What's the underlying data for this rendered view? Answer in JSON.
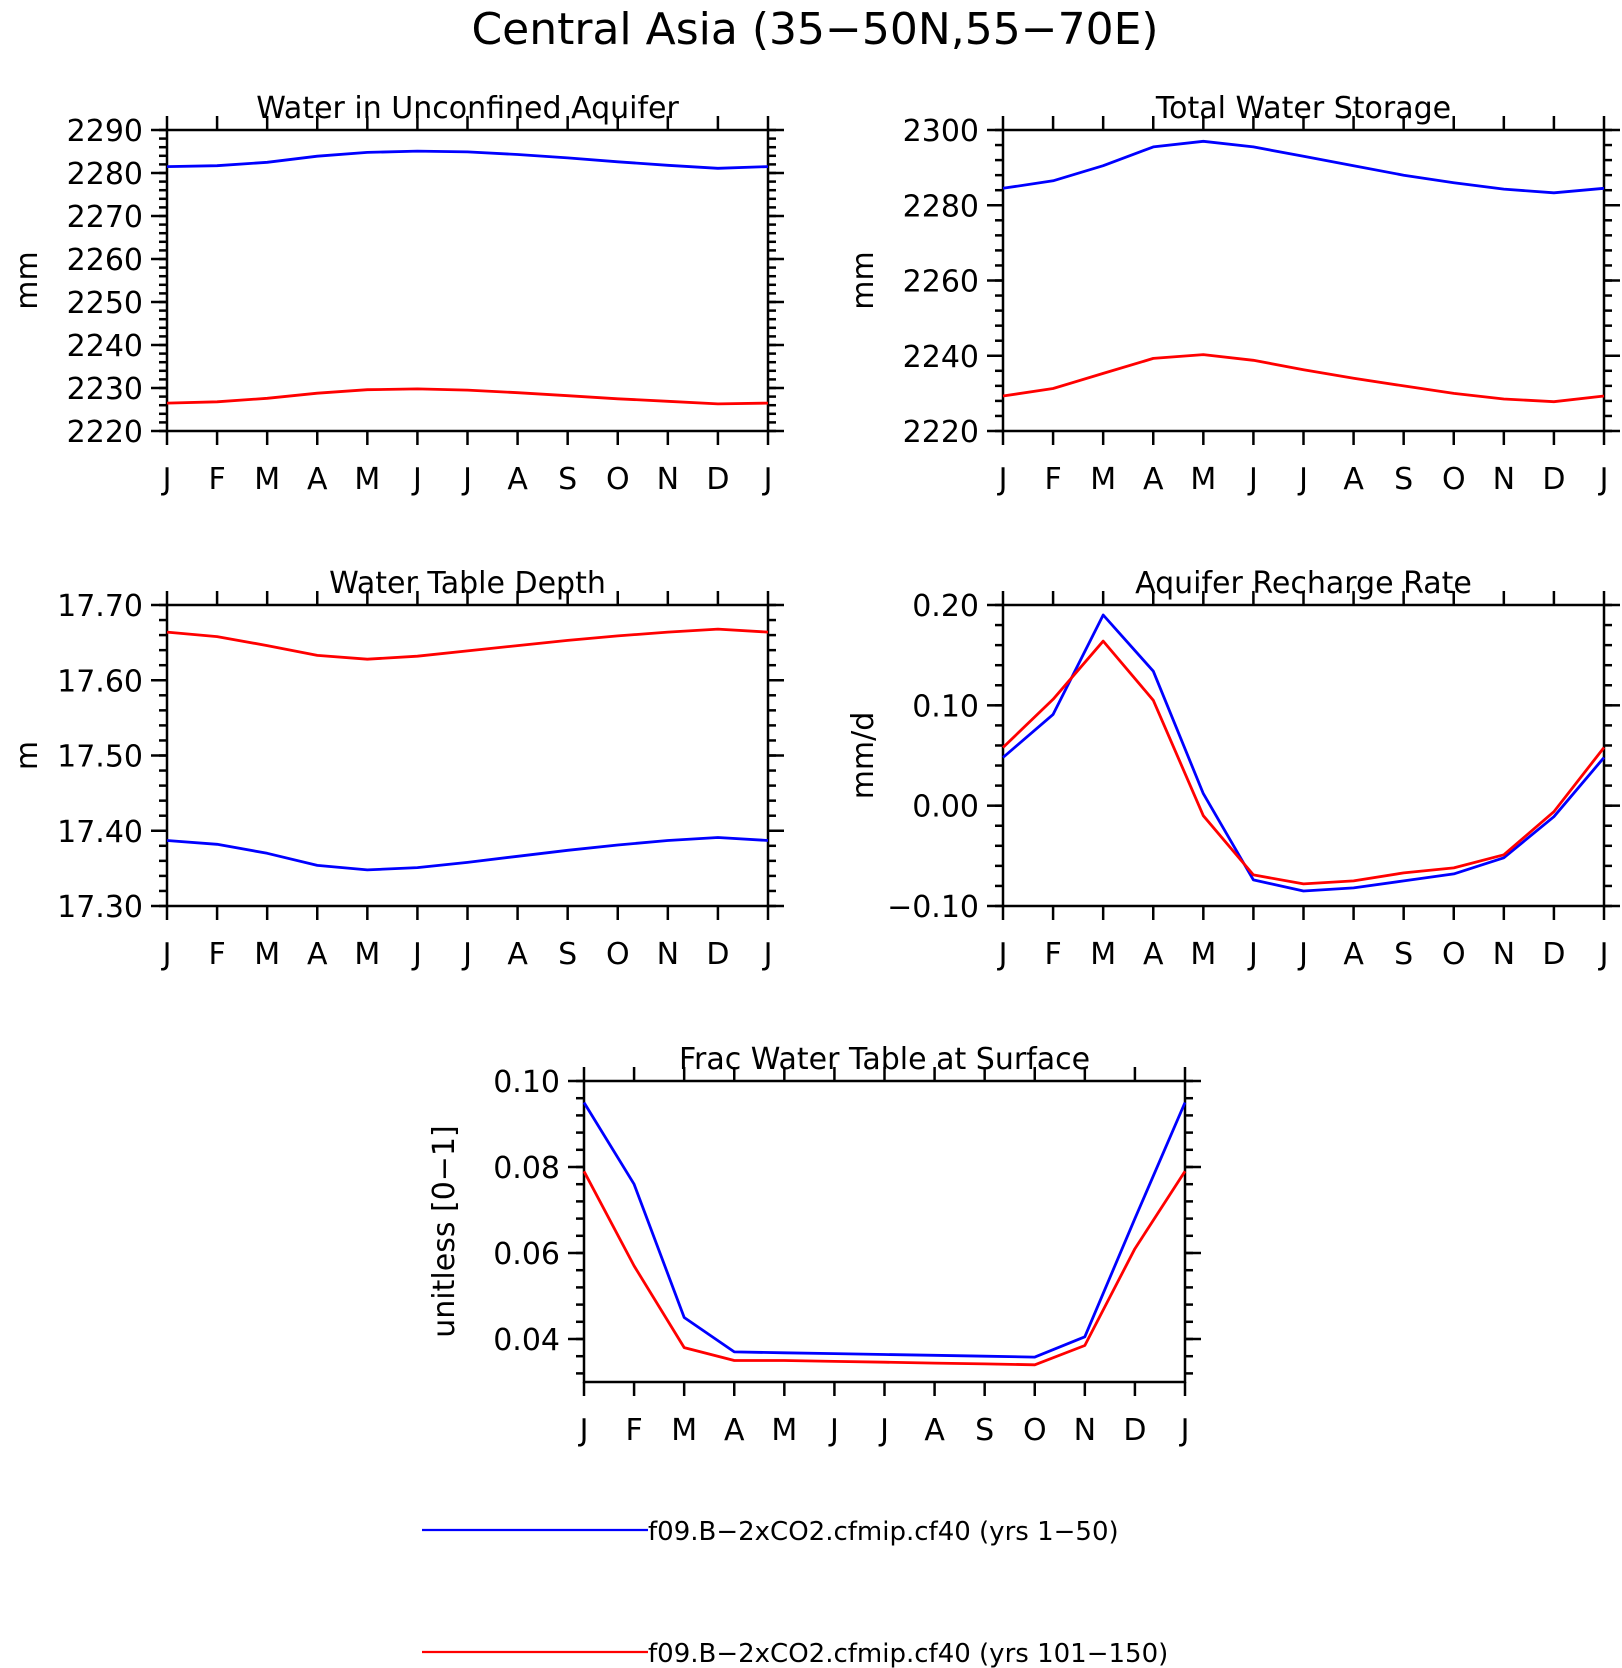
{
  "figure_title": "Central Asia (35−50N,55−70E)",
  "colors": {
    "series_1": "#0000ff",
    "series_2": "#ff0000",
    "axes": "#000000"
  },
  "legend": [
    {
      "label": "f09.B−2xCO2.cfmip.cf40 (yrs 1−50)",
      "color": "#0000ff"
    },
    {
      "label": "f09.B−2xCO2.cfmip.cf40 (yrs 101−150)",
      "color": "#ff0000"
    }
  ],
  "chart_data": [
    {
      "type": "line",
      "title": "Water in Unconfined Aquifer",
      "ylabel": "mm",
      "xlabel": "",
      "x": [
        "J",
        "F",
        "M",
        "A",
        "M",
        "J",
        "J",
        "A",
        "S",
        "O",
        "N",
        "D",
        "J"
      ],
      "ylim": [
        2220,
        2290
      ],
      "yticks": [
        2220,
        2230,
        2240,
        2250,
        2260,
        2270,
        2280,
        2290
      ],
      "ytick_labels": [
        "2220",
        "2230",
        "2240",
        "2250",
        "2260",
        "2270",
        "2280",
        "2290"
      ],
      "series": [
        {
          "values": [
            2281.5,
            2281.7,
            2282.5,
            2283.9,
            2284.8,
            2285.1,
            2284.9,
            2284.3,
            2283.5,
            2282.6,
            2281.8,
            2281.1,
            2281.5
          ],
          "color": "#0000ff"
        },
        {
          "values": [
            2226.5,
            2226.8,
            2227.6,
            2228.8,
            2229.6,
            2229.8,
            2229.5,
            2228.9,
            2228.2,
            2227.5,
            2226.9,
            2226.3,
            2226.5
          ],
          "color": "#ff0000"
        }
      ]
    },
    {
      "type": "line",
      "title": "Total Water Storage",
      "ylabel": "mm",
      "xlabel": "",
      "x": [
        "J",
        "F",
        "M",
        "A",
        "M",
        "J",
        "J",
        "A",
        "S",
        "O",
        "N",
        "D",
        "J"
      ],
      "ylim": [
        2220,
        2300
      ],
      "yticks": [
        2220,
        2240,
        2260,
        2280,
        2300
      ],
      "ytick_labels": [
        "2220",
        "2240",
        "2260",
        "2280",
        "2300"
      ],
      "series": [
        {
          "values": [
            2284.5,
            2286.5,
            2290.5,
            2295.5,
            2297.0,
            2295.5,
            2293.0,
            2290.5,
            2288.0,
            2286.0,
            2284.3,
            2283.3,
            2284.5
          ],
          "color": "#0000ff"
        },
        {
          "values": [
            2229.3,
            2231.3,
            2235.3,
            2239.3,
            2240.3,
            2238.8,
            2236.3,
            2234.0,
            2232.0,
            2230.0,
            2228.5,
            2227.8,
            2229.3
          ],
          "color": "#ff0000"
        }
      ]
    },
    {
      "type": "line",
      "title": "Water Table Depth",
      "ylabel": "m",
      "xlabel": "",
      "x": [
        "J",
        "F",
        "M",
        "A",
        "M",
        "J",
        "J",
        "A",
        "S",
        "O",
        "N",
        "D",
        "J"
      ],
      "ylim": [
        17.3,
        17.7
      ],
      "yticks": [
        17.3,
        17.4,
        17.5,
        17.6,
        17.7
      ],
      "ytick_labels": [
        "17.30",
        "17.40",
        "17.50",
        "17.60",
        "17.70"
      ],
      "series": [
        {
          "values": [
            17.387,
            17.382,
            17.37,
            17.354,
            17.348,
            17.351,
            17.358,
            17.366,
            17.374,
            17.381,
            17.387,
            17.391,
            17.387
          ],
          "color": "#0000ff"
        },
        {
          "values": [
            17.664,
            17.658,
            17.646,
            17.633,
            17.628,
            17.632,
            17.639,
            17.646,
            17.653,
            17.659,
            17.664,
            17.668,
            17.664
          ],
          "color": "#ff0000"
        }
      ]
    },
    {
      "type": "line",
      "title": "Aquifer Recharge Rate",
      "ylabel": "mm/d",
      "xlabel": "",
      "x": [
        "J",
        "F",
        "M",
        "A",
        "M",
        "J",
        "J",
        "A",
        "S",
        "O",
        "N",
        "D",
        "J"
      ],
      "ylim": [
        -0.1,
        0.2
      ],
      "yticks": [
        -0.1,
        0.0,
        0.1,
        0.2
      ],
      "ytick_labels": [
        "−0.10",
        "0.00",
        "0.10",
        "0.20"
      ],
      "series": [
        {
          "values": [
            0.048,
            0.091,
            0.19,
            0.134,
            0.012,
            -0.074,
            -0.085,
            -0.082,
            -0.075,
            -0.068,
            -0.052,
            -0.011,
            0.048
          ],
          "color": "#0000ff"
        },
        {
          "values": [
            0.058,
            0.106,
            0.164,
            0.105,
            -0.01,
            -0.069,
            -0.078,
            -0.075,
            -0.067,
            -0.062,
            -0.049,
            -0.006,
            0.058
          ],
          "color": "#ff0000"
        }
      ]
    },
    {
      "type": "line",
      "title": "Frac Water Table at Surface",
      "ylabel": "unitless [0−1]",
      "xlabel": "",
      "x": [
        "J",
        "F",
        "M",
        "A",
        "M",
        "J",
        "J",
        "A",
        "S",
        "O",
        "N",
        "D",
        "J"
      ],
      "ylim": [
        0.03,
        0.1
      ],
      "yticks": [
        0.04,
        0.06,
        0.08,
        0.1
      ],
      "ytick_labels": [
        "0.04",
        "0.06",
        "0.08",
        "0.10"
      ],
      "series": [
        {
          "values": [
            0.095,
            0.076,
            0.045,
            0.037,
            0.0368,
            0.0366,
            0.0364,
            0.0362,
            0.036,
            0.0358,
            0.0405,
            0.068,
            0.095
          ],
          "color": "#0000ff"
        },
        {
          "values": [
            0.079,
            0.057,
            0.038,
            0.035,
            0.035,
            0.0348,
            0.0346,
            0.0344,
            0.0342,
            0.034,
            0.0385,
            0.061,
            0.079
          ],
          "color": "#ff0000"
        }
      ]
    }
  ]
}
